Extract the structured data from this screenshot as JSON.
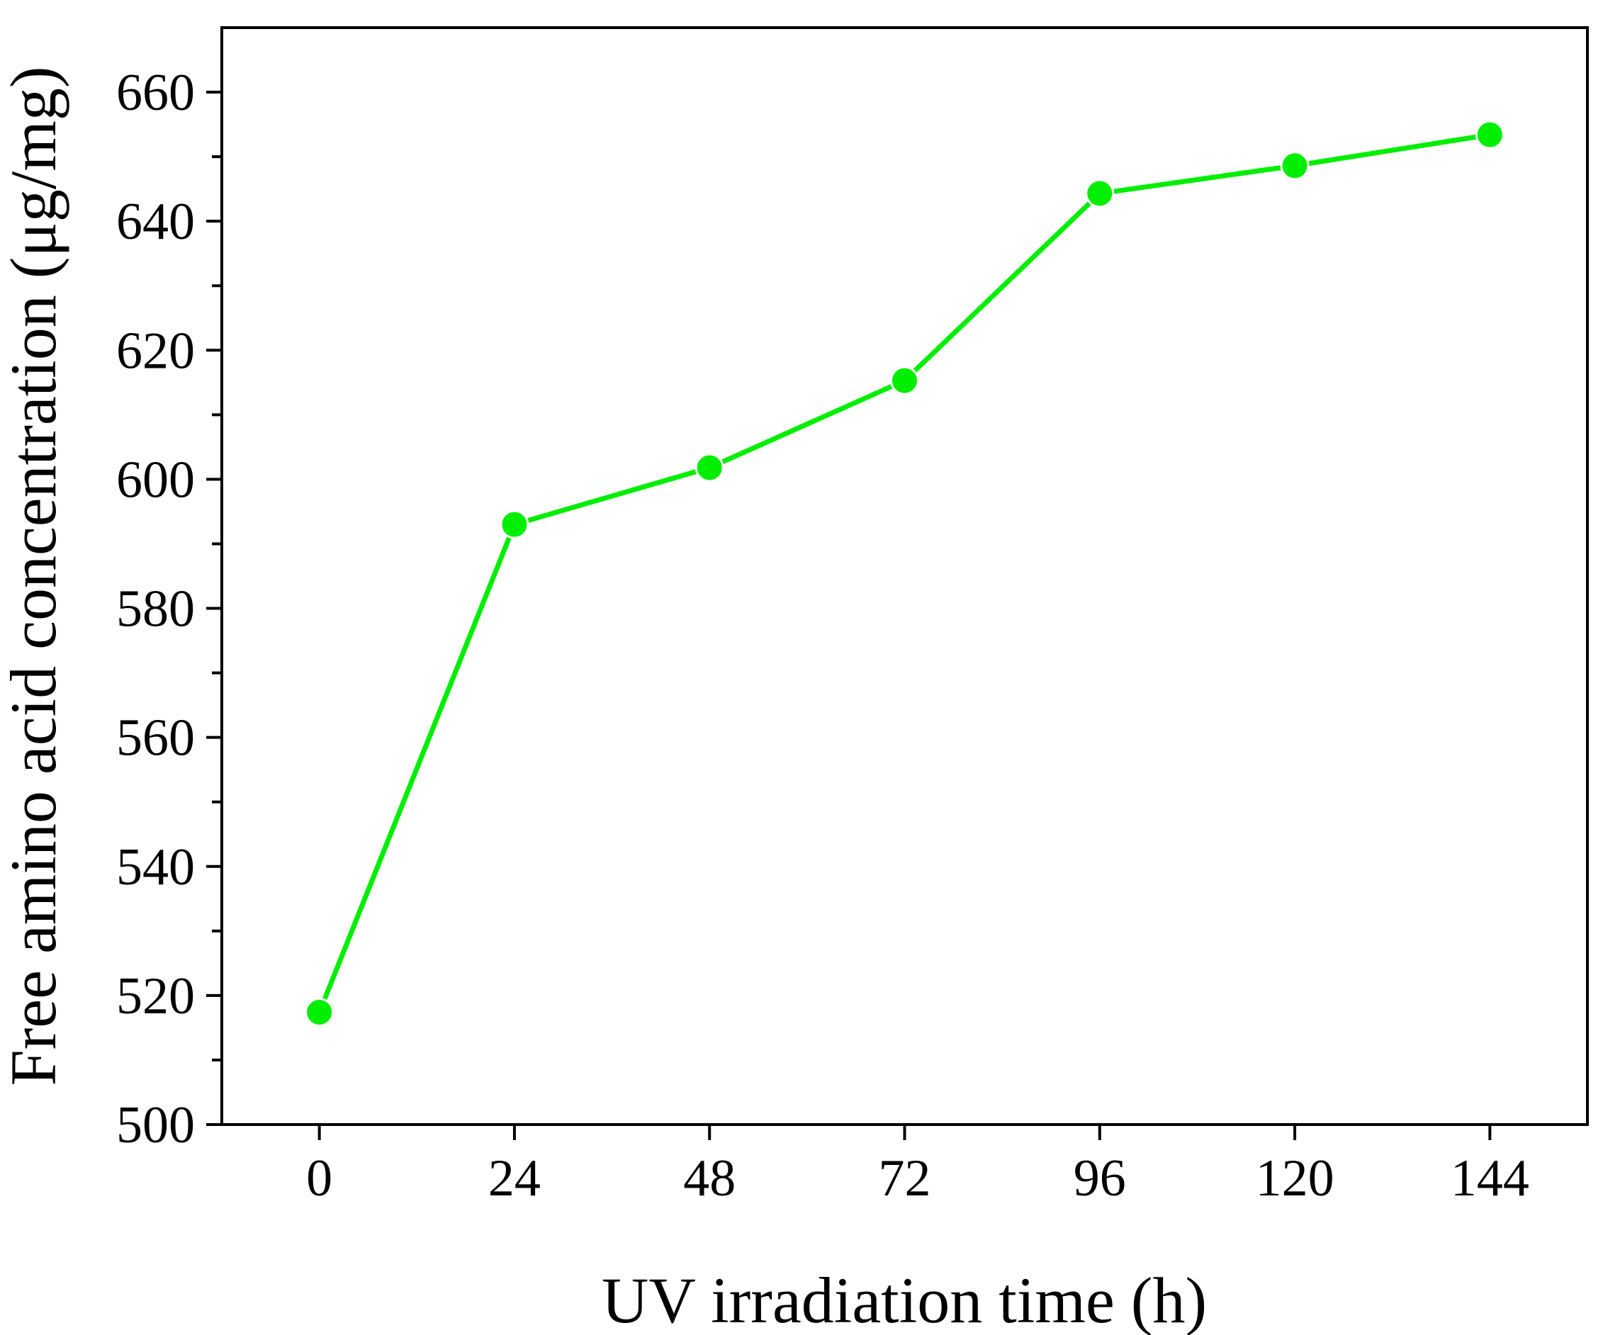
{
  "chart_data": {
    "type": "line",
    "title": "",
    "xlabel": "UV irradiation time (h)",
    "ylabel": "Free amino acid concentration (μg/mg)",
    "x": [
      0,
      24,
      48,
      72,
      96,
      120,
      144
    ],
    "series": [
      {
        "values": [
          517.4,
          593.0,
          601.8,
          615.3,
          644.3,
          648.6,
          653.4
        ],
        "color": "#00ee00"
      }
    ],
    "xticks": [
      "0",
      "24",
      "48",
      "72",
      "96",
      "120",
      "144"
    ],
    "yticks": [
      "500",
      "520",
      "540",
      "560",
      "580",
      "600",
      "620",
      "640",
      "660"
    ],
    "xlim": [
      -12,
      156
    ],
    "ylim": [
      500,
      670
    ],
    "grid": false,
    "legend": "none",
    "marker": "circle"
  }
}
